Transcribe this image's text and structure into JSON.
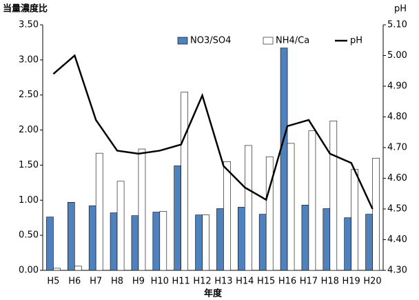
{
  "chart_data": {
    "type": "bar_line",
    "y_label": "当量濃度比",
    "y2_label": "pH",
    "x_label": "年度",
    "categories": [
      "H5",
      "H6",
      "H7",
      "H8",
      "H9",
      "H10",
      "H11",
      "H12",
      "H13",
      "H14",
      "H15",
      "H16",
      "H17",
      "H18",
      "H19",
      "H20"
    ],
    "series": [
      {
        "name": "NO3/SO4",
        "kind": "bar",
        "color": "#4f81bd",
        "values": [
          0.76,
          0.97,
          0.92,
          0.82,
          0.78,
          0.83,
          1.49,
          0.79,
          0.88,
          0.9,
          0.8,
          3.17,
          0.93,
          0.88,
          0.75,
          0.8
        ]
      },
      {
        "name": "NH4/Ca",
        "kind": "bar",
        "color": "#ffffff",
        "values": [
          0.03,
          0.06,
          1.67,
          1.27,
          1.73,
          0.84,
          2.54,
          0.79,
          1.55,
          1.78,
          1.62,
          1.81,
          1.99,
          2.13,
          1.44,
          1.6
        ]
      },
      {
        "name": "pH",
        "kind": "line",
        "axis": "y2",
        "color": "#000000",
        "values": [
          4.94,
          5.0,
          4.79,
          4.69,
          4.68,
          4.69,
          4.71,
          4.87,
          4.64,
          4.57,
          4.53,
          4.77,
          4.79,
          4.68,
          4.65,
          4.5
        ]
      }
    ],
    "ylim": [
      0,
      3.5
    ],
    "yticks": [
      {
        "value": 0,
        "label": "0.00"
      },
      {
        "value": 0.5,
        "label": "0.50"
      },
      {
        "value": 1,
        "label": "1.00"
      },
      {
        "value": 1.5,
        "label": "1.50"
      },
      {
        "value": 2,
        "label": "2.00"
      },
      {
        "value": 2.5,
        "label": "2.50"
      },
      {
        "value": 3,
        "label": "3.00"
      },
      {
        "value": 3.5,
        "label": "3.50"
      }
    ],
    "y2lim": [
      4.3,
      5.1
    ],
    "y2ticks": [
      {
        "value": 4.3,
        "label": "4.30"
      },
      {
        "value": 4.4,
        "label": "4.40"
      },
      {
        "value": 4.5,
        "label": "4.50"
      },
      {
        "value": 4.6,
        "label": "4.60"
      },
      {
        "value": 4.7,
        "label": "4.70"
      },
      {
        "value": 4.8,
        "label": "4.80"
      },
      {
        "value": 4.9,
        "label": "4.90"
      },
      {
        "value": 5.0,
        "label": "5.00"
      },
      {
        "value": 5.1,
        "label": "5.10"
      }
    ],
    "grid": false,
    "legend": "top-right"
  }
}
